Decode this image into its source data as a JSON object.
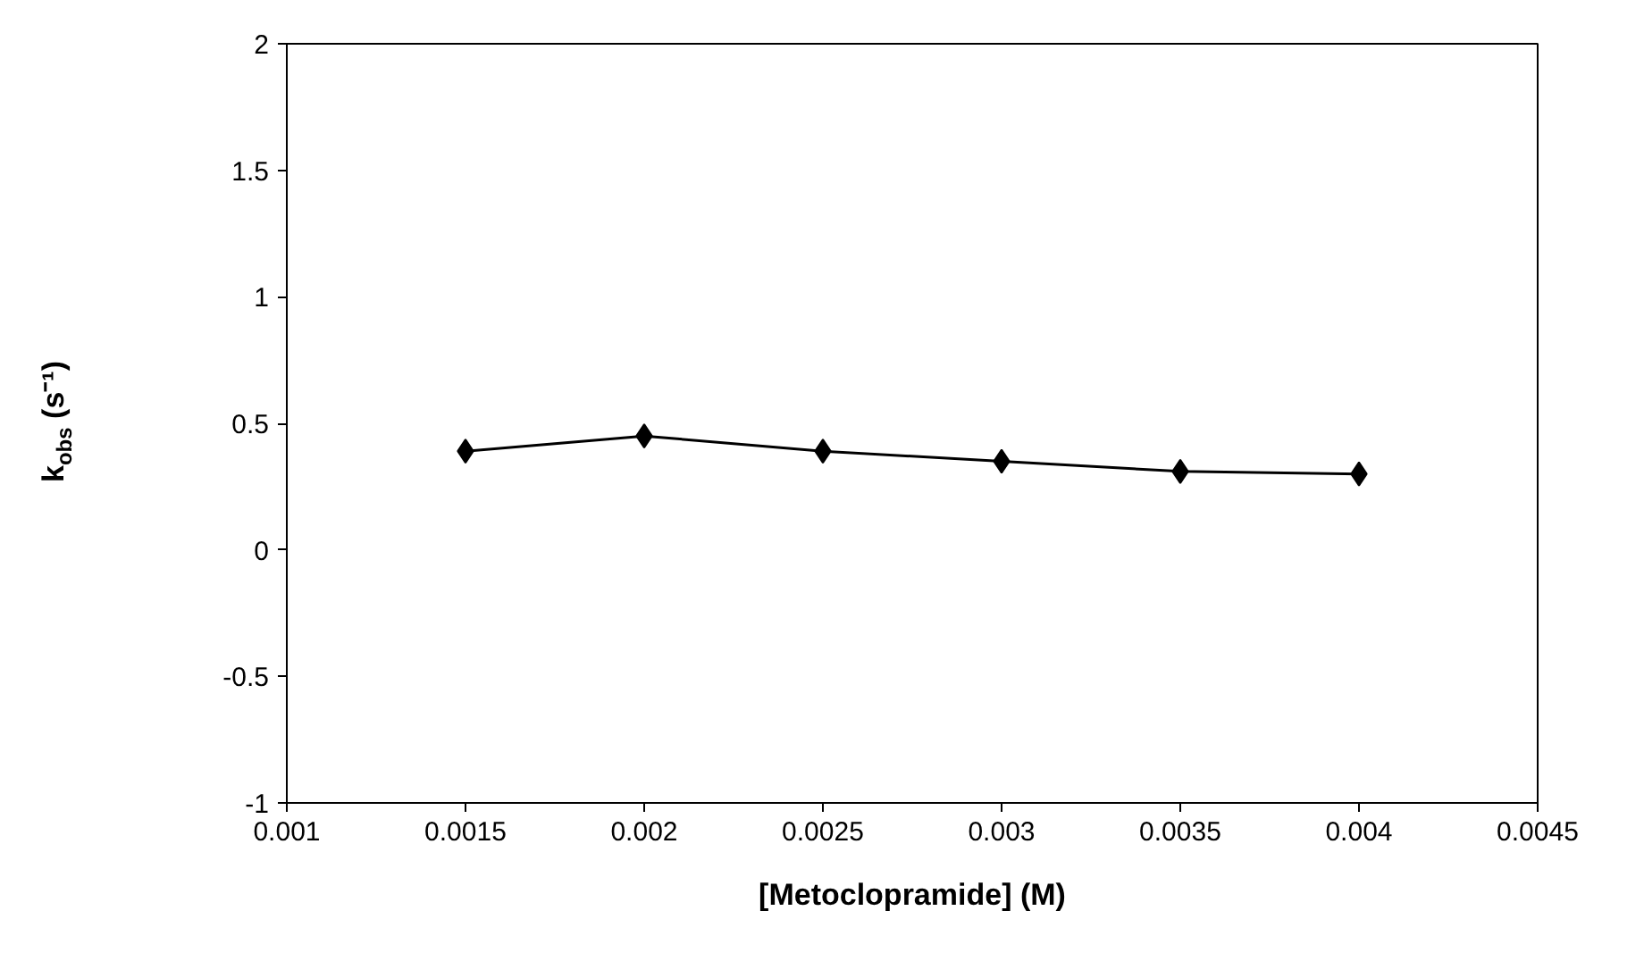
{
  "chart_data": {
    "type": "line",
    "xlabel": "[Metoclopramide] (M)",
    "ylabel": "k$_{obs}$ (s⁻¹)",
    "x": [
      0.0015,
      0.002,
      0.0025,
      0.003,
      0.0035,
      0.004
    ],
    "series": [
      {
        "color": "#000000",
        "values": [
          0.39,
          0.45,
          0.39,
          0.35,
          0.31,
          0.3
        ]
      }
    ],
    "xlim": [
      0.001,
      0.0045
    ],
    "xticks": [
      0.001,
      0.0015,
      0.002,
      0.0025,
      0.003,
      0.0035,
      0.004,
      0.0045
    ],
    "ylim": [
      -1,
      2
    ],
    "yticks": [
      -1,
      -0.5,
      0,
      0.5,
      1,
      1.5,
      2
    ],
    "marker": "diamond",
    "line_style": "solid",
    "grid": false
  }
}
